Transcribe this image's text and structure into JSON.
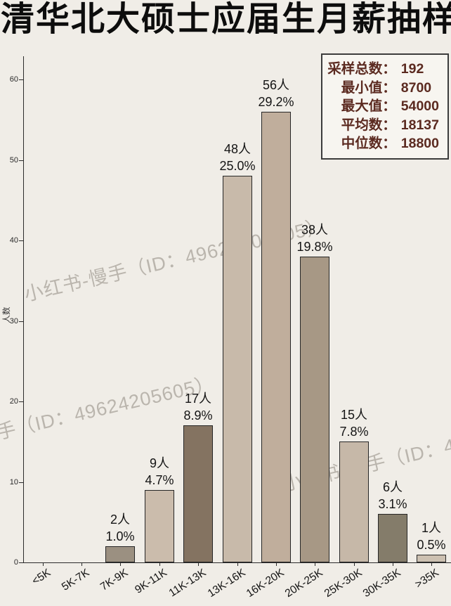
{
  "title": "清华北大硕士应届生月薪抽样",
  "watermark": {
    "text": "小红书-慢手（ID：49624205605）"
  },
  "stats_box": {
    "rows": [
      {
        "label": "采样总数：",
        "value": "192"
      },
      {
        "label": "最小值：",
        "value": "8700"
      },
      {
        "label": "最大值：",
        "value": "54000"
      },
      {
        "label": "平均数：",
        "value": "18137"
      },
      {
        "label": "中位数：",
        "value": "18800"
      }
    ]
  },
  "chart_data": {
    "type": "bar",
    "title": "清华北大硕士应届生月薪抽样",
    "xlabel": "",
    "ylabel": "人数",
    "categories": [
      "<5K",
      "5K-7K",
      "7K-9K",
      "9K-11K",
      "11K-13K",
      "13K-16K",
      "16K-20K",
      "20K-25K",
      "25K-30K",
      "30K-35K",
      ">35K"
    ],
    "values": [
      0,
      0,
      2,
      9,
      17,
      48,
      56,
      38,
      15,
      6,
      1
    ],
    "count_labels": [
      "",
      "",
      "2人",
      "9人",
      "17人",
      "48人",
      "56人",
      "38人",
      "15人",
      "6人",
      "1人"
    ],
    "percent_labels": [
      "",
      "",
      "1.0%",
      "4.7%",
      "8.9%",
      "25.0%",
      "29.2%",
      "19.8%",
      "7.8%",
      "3.1%",
      "0.5%"
    ],
    "bar_colors": [
      "#c3b5a5",
      "#c3b5a5",
      "#9b9081",
      "#cbbcac",
      "#847361",
      "#c8baaa",
      "#c0ae9c",
      "#a79885",
      "#c6b8a8",
      "#847c6a",
      "#ccc0b1"
    ],
    "yticks": [
      0,
      10,
      20,
      30,
      40,
      50,
      60
    ],
    "ylim": [
      0,
      63
    ],
    "grid": false,
    "legend_position": "none",
    "background": "#f0ede7",
    "axis_color": "#2b2b2b"
  }
}
